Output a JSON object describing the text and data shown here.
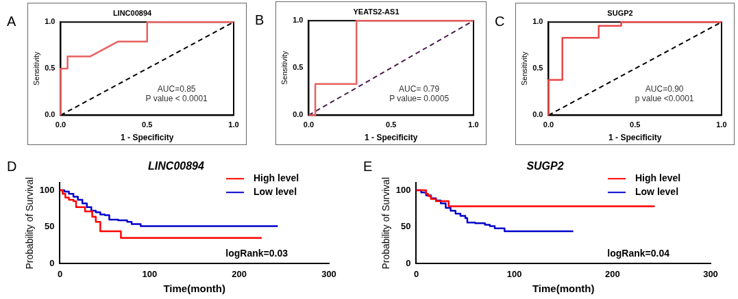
{
  "chart_data": [
    {
      "type": "line",
      "title": "LINC00894",
      "xlabel": "1 - Specificity",
      "ylabel": "Sensitivity",
      "annotations": [
        "A",
        "AUC=0.85",
        "P value < 0.0001"
      ],
      "xlim": [
        0,
        1
      ],
      "ylim": [
        0,
        1
      ],
      "xticks": [
        {
          "value": 0,
          "label": "0.0"
        },
        {
          "value": 0.5,
          "label": "0.5"
        },
        {
          "value": 1,
          "label": "1.0"
        }
      ],
      "yticks": [
        {
          "value": 0,
          "label": "0.0"
        },
        {
          "value": 0.5,
          "label": "0.5"
        },
        {
          "value": 1,
          "label": "1.0"
        }
      ],
      "series": [
        {
          "color": "#e8605f",
          "x": [
            0,
            0,
            0.04,
            0.04,
            0.17,
            0.33,
            0.5,
            0.5,
            1
          ],
          "values": [
            0,
            0.5,
            0.5,
            0.63,
            0.63,
            0.79,
            0.79,
            1,
            1
          ]
        },
        {
          "color": "#000000",
          "line_style": "dashed",
          "x": [
            0,
            1
          ],
          "values": [
            0,
            1
          ]
        }
      ]
    },
    {
      "type": "line",
      "title": "YEATS2-AS1",
      "xlabel": "1 - Specificity",
      "ylabel": "Sensitivity",
      "annotations": [
        "B",
        "AUC= 0.79",
        "P value= 0.0005"
      ],
      "xlim": [
        0,
        1
      ],
      "ylim": [
        0,
        1
      ],
      "xticks": [
        {
          "value": 0,
          "label": "0.0"
        },
        {
          "value": 0.5,
          "label": "0.5"
        },
        {
          "value": 1,
          "label": "1.0"
        }
      ],
      "yticks": [
        {
          "value": 0,
          "label": "0.0"
        },
        {
          "value": 0.5,
          "label": "0.5"
        },
        {
          "value": 1,
          "label": "1.0"
        }
      ],
      "series": [
        {
          "color": "#e8605f",
          "x": [
            0,
            0.04,
            0.04,
            0.29,
            0.29,
            1
          ],
          "values": [
            0,
            0,
            0.33,
            0.33,
            1,
            1
          ]
        },
        {
          "color": "#4b1b4b",
          "line_style": "dashed",
          "x": [
            0,
            1
          ],
          "values": [
            0,
            1
          ]
        }
      ]
    },
    {
      "type": "line",
      "title": "SUGP2",
      "xlabel": "1 - Specificity",
      "ylabel": "Sensitivity",
      "annotations": [
        "C",
        "AUC=0.90",
        "p value <0.0001"
      ],
      "xlim": [
        0,
        1
      ],
      "ylim": [
        0,
        1
      ],
      "xticks": [
        {
          "value": 0,
          "label": "0.0"
        },
        {
          "value": 0.5,
          "label": "0.5"
        },
        {
          "value": 1,
          "label": "1.0"
        }
      ],
      "yticks": [
        {
          "value": 0,
          "label": "0.0"
        },
        {
          "value": 0.5,
          "label": "0.5"
        },
        {
          "value": 1,
          "label": "1.0"
        }
      ],
      "series": [
        {
          "color": "#e84848",
          "x": [
            0,
            0,
            0.08,
            0.08,
            0.29,
            0.29,
            0.42,
            0.42,
            1
          ],
          "values": [
            0,
            0.38,
            0.38,
            0.83,
            0.83,
            0.96,
            0.96,
            1,
            1
          ]
        },
        {
          "color": "#000000",
          "line_style": "dashed",
          "x": [
            0,
            1
          ],
          "values": [
            0,
            1
          ]
        }
      ]
    },
    {
      "type": "step",
      "title": "LINC00894",
      "xlabel": "Time(month)",
      "ylabel": "Probability of Survival",
      "annotations": [
        "D",
        "logRank=0.03"
      ],
      "xlim": [
        0,
        300
      ],
      "ylim": [
        0,
        110
      ],
      "xticks": [
        0,
        100,
        200,
        300
      ],
      "yticks": [
        0,
        50,
        100
      ],
      "legend": "top right",
      "series": [
        {
          "name": "High level",
          "color": "#ff0000",
          "x": [
            0,
            3,
            6,
            10,
            15,
            18,
            28,
            36,
            40,
            45,
            68,
            225
          ],
          "values": [
            100,
            95,
            90,
            87,
            85,
            77,
            71,
            64,
            57,
            44,
            35,
            35
          ]
        },
        {
          "name": "Low level",
          "color": "#0000cc",
          "x": [
            0,
            5,
            10,
            15,
            20,
            25,
            30,
            35,
            40,
            45,
            50,
            55,
            65,
            75,
            80,
            90,
            243
          ],
          "values": [
            100,
            98,
            95,
            91,
            87,
            82,
            77,
            72,
            70,
            67,
            66,
            60,
            59,
            57,
            54,
            51,
            51
          ]
        }
      ]
    },
    {
      "type": "step",
      "title": "SUGP2",
      "xlabel": "Time(month)",
      "ylabel": "Probability of Survival",
      "annotations": [
        "E",
        "logRank=0.04"
      ],
      "xlim": [
        0,
        300
      ],
      "ylim": [
        0,
        110
      ],
      "xticks": [
        0,
        100,
        200,
        300
      ],
      "yticks": [
        0,
        50,
        100
      ],
      "legend": "top right",
      "series": [
        {
          "name": "High level",
          "color": "#ff0000",
          "x": [
            0,
            10,
            12,
            15,
            20,
            33,
            243
          ],
          "values": [
            100,
            95,
            92,
            88,
            85,
            78,
            78
          ]
        },
        {
          "name": "Low level",
          "color": "#0000cc",
          "x": [
            0,
            5,
            10,
            15,
            20,
            25,
            30,
            35,
            40,
            45,
            50,
            52,
            60,
            70,
            75,
            80,
            90,
            160
          ],
          "values": [
            100,
            97,
            93,
            89,
            86,
            82,
            76,
            72,
            68,
            65,
            62,
            56,
            55,
            53,
            51,
            48,
            44,
            44
          ]
        }
      ]
    }
  ]
}
